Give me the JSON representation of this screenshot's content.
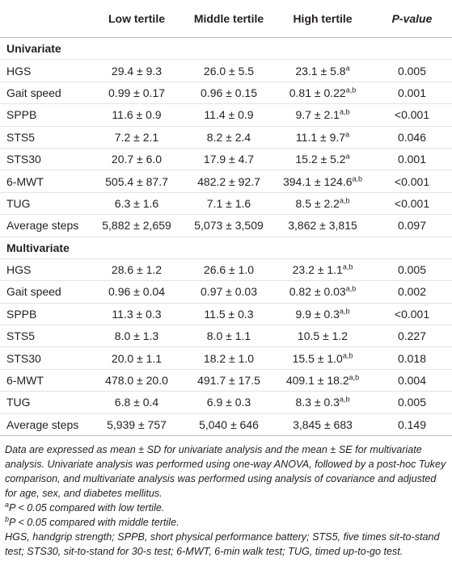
{
  "table": {
    "header": [
      "",
      "Low tertile",
      "Middle tertile",
      "High tertile",
      "P-value"
    ],
    "sections": [
      {
        "title": "Univariate",
        "rows": [
          [
            "HGS",
            "29.4 ± 9.3",
            "26.0 ± 5.5",
            {
              "text": "23.1 ± 5.8",
              "sup": "a"
            },
            "0.005"
          ],
          [
            "Gait speed",
            "0.99 ± 0.17",
            "0.96 ± 0.15",
            {
              "text": "0.81 ± 0.22",
              "sup": "a,b"
            },
            "0.001"
          ],
          [
            "SPPB",
            "11.6 ± 0.9",
            "11.4 ± 0.9",
            {
              "text": "9.7 ± 2.1",
              "sup": "a,b"
            },
            "<0.001"
          ],
          [
            "STS5",
            "7.2 ± 2.1",
            "8.2 ± 2.4",
            {
              "text": "11.1 ± 9.7",
              "sup": "a"
            },
            "0.046"
          ],
          [
            "STS30",
            "20.7 ± 6.0",
            "17.9 ± 4.7",
            {
              "text": "15.2 ± 5.2",
              "sup": "a"
            },
            "0.001"
          ],
          [
            "6-MWT",
            "505.4 ± 87.7",
            "482.2 ± 92.7",
            {
              "text": "394.1 ± 124.6",
              "sup": "a,b"
            },
            "<0.001"
          ],
          [
            "TUG",
            "6.3 ± 1.6",
            "7.1 ± 1.6",
            {
              "text": "8.5 ± 2.2",
              "sup": "a,b"
            },
            "<0.001"
          ],
          [
            "Average steps",
            "5,882 ± 2,659",
            "5,073 ± 3,509",
            "3,862 ± 3,815",
            "0.097"
          ]
        ]
      },
      {
        "title": "Multivariate",
        "rows": [
          [
            "HGS",
            "28.6 ± 1.2",
            "26.6 ± 1.0",
            {
              "text": "23.2 ± 1.1",
              "sup": "a,b"
            },
            "0.005"
          ],
          [
            "Gait speed",
            "0.96 ± 0.04",
            "0.97 ± 0.03",
            {
              "text": "0.82 ± 0.03",
              "sup": "a,b"
            },
            "0.002"
          ],
          [
            "SPPB",
            "11.3 ± 0.3",
            "11.5 ± 0.3",
            {
              "text": "9.9 ± 0.3",
              "sup": "a,b"
            },
            "<0.001"
          ],
          [
            "STS5",
            "8.0 ± 1.3",
            "8.0 ± 1.1",
            "10.5 ± 1.2",
            "0.227"
          ],
          [
            "STS30",
            "20.0 ± 1.1",
            "18.2 ± 1.0",
            {
              "text": "15.5 ± 1.0",
              "sup": "a,b"
            },
            "0.018"
          ],
          [
            "6-MWT",
            "478.0 ± 20.0",
            "491.7 ± 17.5",
            {
              "text": "409.1 ± 18.2",
              "sup": "a,b"
            },
            "0.004"
          ],
          [
            "TUG",
            "6.8 ± 0.4",
            "6.9 ± 0.3",
            {
              "text": "8.3 ± 0.3",
              "sup": "a,b"
            },
            "0.005"
          ],
          [
            "Average steps",
            "5,939 ± 757",
            "5,040 ± 646",
            "3,845 ± 683",
            "0.149"
          ]
        ]
      }
    ],
    "notes": [
      {
        "text": "Data are expressed as mean ± SD for univariate analysis and the mean ± SE for multivariate analysis. Univariate analysis was performed using one-way ANOVA, followed by a post-hoc Tukey comparison, and multivariate analysis was performed using analysis of covariance and adjusted for age, sex, and diabetes mellitus."
      },
      {
        "sup": "a",
        "text": "P < 0.05 compared with low tertile."
      },
      {
        "sup": "b",
        "text": "P < 0.05 compared with middle tertile."
      },
      {
        "text": "HGS, handgrip strength; SPPB, short physical performance battery; STS5, five times sit-to-stand test; STS30, sit-to-stand for 30-s test; 6-MWT, 6-min walk test; TUG, timed up-to-go test."
      }
    ]
  }
}
